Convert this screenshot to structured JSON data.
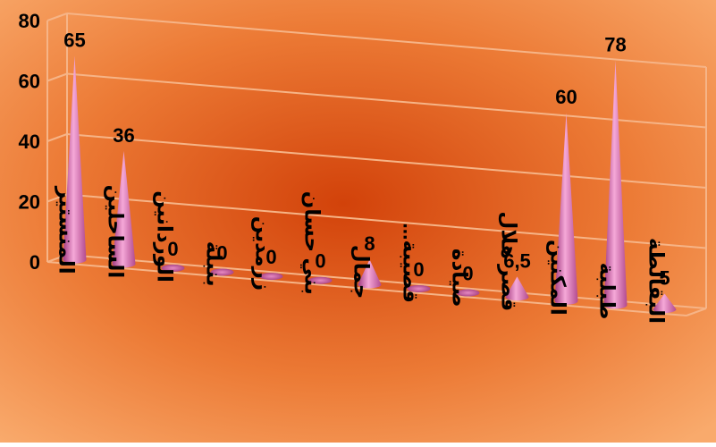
{
  "chart_data": {
    "type": "bar",
    "style": "3d-cone",
    "categories": [
      "المنستير",
      "الساحلين",
      "الوردانين",
      "بنبلة",
      "زرمدين",
      "بني حسان",
      "جمال",
      "قصيبة...",
      "صيادة",
      "قصر هلال",
      "المكنين",
      "طبلبة",
      "البقالطة"
    ],
    "series": [
      {
        "values": [
          65,
          36,
          0,
          0,
          0,
          0,
          8,
          0,
          0,
          6.5,
          60,
          78,
          5
        ]
      }
    ],
    "data_labels": [
      "65",
      "36",
      "0",
      "0",
      "0",
      "0",
      "8",
      "0",
      "0",
      "6,5",
      "60",
      "78",
      "5"
    ],
    "y_ticks": [
      "0",
      "20",
      "40",
      "60",
      "80"
    ],
    "ylim": [
      0,
      80
    ],
    "grid": true,
    "legend": "none",
    "title": "",
    "xlabel": "",
    "ylabel": "",
    "colors": {
      "background_center": "#d2420a",
      "background_edge": "#f9aa6c",
      "cone_light": "#f5a8d8",
      "cone_dark": "#a23a80",
      "grid": "#f6b487",
      "text": "#000000"
    }
  }
}
